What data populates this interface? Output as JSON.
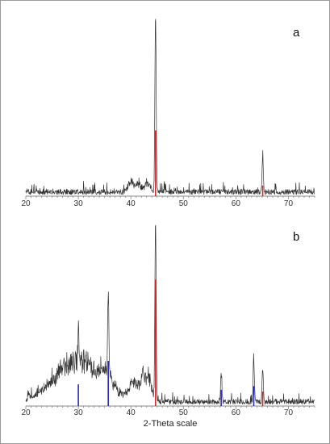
{
  "chart_data": [
    {
      "type": "line",
      "panel_label": "a",
      "xlabel": "",
      "xlim": [
        20,
        75
      ],
      "xticks": [
        "20",
        "30",
        "40",
        "50",
        "60",
        "70"
      ],
      "ylim": [
        0,
        100
      ],
      "grid": false,
      "colors": {
        "pattern": "#333333",
        "reference": "#d62728",
        "axis": "#888888"
      },
      "baseline_noise": 3,
      "features": [
        {
          "x": 40.0,
          "h": 7,
          "w": 0.5
        },
        {
          "x": 41.5,
          "h": 5,
          "w": 0.5
        },
        {
          "x": 43.2,
          "h": 6,
          "w": 0.5
        }
      ],
      "peaks": [
        {
          "x": 44.7,
          "h": 100
        },
        {
          "x": 65.1,
          "h": 19
        }
      ],
      "reference_lines": [
        {
          "x": 44.7,
          "h": 37,
          "color": "#d62728"
        },
        {
          "x": 65.1,
          "h": 6,
          "color": "#d62728"
        }
      ]
    },
    {
      "type": "line",
      "panel_label": "b",
      "xlabel": "2-Theta scale",
      "xlim": [
        20,
        75
      ],
      "xticks": [
        "20",
        "30",
        "40",
        "50",
        "60",
        "70"
      ],
      "ylim": [
        0,
        100
      ],
      "grid": false,
      "colors": {
        "pattern": "#333333",
        "reference": "#d62728",
        "reference_alt": "#2a2ab8",
        "axis": "#888888"
      },
      "baseline_noise": 3,
      "features": [
        {
          "x": 30.0,
          "h": 26,
          "w": 4.5
        },
        {
          "x": 35.5,
          "h": 6,
          "w": 1.0
        },
        {
          "x": 40.5,
          "h": 9,
          "w": 0.9
        },
        {
          "x": 42.5,
          "h": 12,
          "w": 0.7
        },
        {
          "x": 43.6,
          "h": 10,
          "w": 0.5
        }
      ],
      "peaks": [
        {
          "x": 30.0,
          "h": 14
        },
        {
          "x": 35.7,
          "h": 46
        },
        {
          "x": 42.3,
          "h": 8
        },
        {
          "x": 44.7,
          "h": 100
        },
        {
          "x": 57.2,
          "h": 16
        },
        {
          "x": 63.4,
          "h": 22
        },
        {
          "x": 65.1,
          "h": 17
        }
      ],
      "reference_lines": [
        {
          "x": 30.0,
          "h": 12,
          "color": "#2a2ab8"
        },
        {
          "x": 35.7,
          "h": 25,
          "color": "#2a2ab8"
        },
        {
          "x": 44.7,
          "h": 70,
          "color": "#d62728"
        },
        {
          "x": 57.2,
          "h": 9,
          "color": "#2a2ab8"
        },
        {
          "x": 63.4,
          "h": 11,
          "color": "#2a2ab8"
        },
        {
          "x": 65.1,
          "h": 8,
          "color": "#d62728"
        }
      ]
    }
  ]
}
